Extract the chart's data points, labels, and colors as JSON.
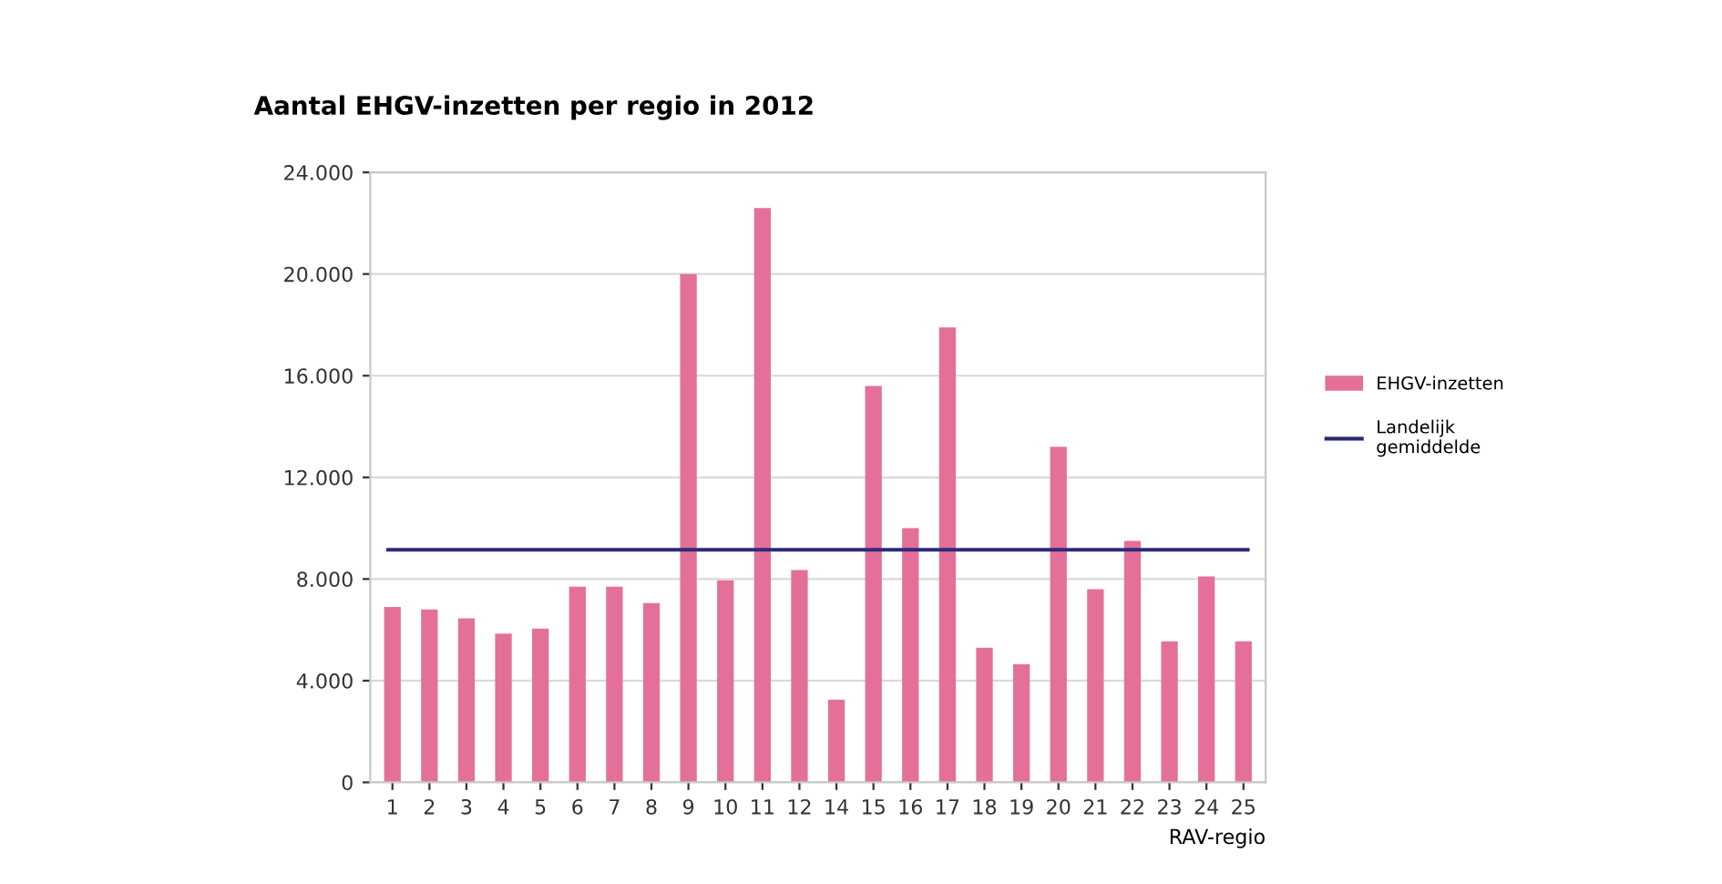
{
  "chart_data": {
    "type": "bar",
    "title": "Aantal EHGV-inzetten per regio in 2012",
    "xlabel": "RAV-regio",
    "categories": [
      "1",
      "2",
      "3",
      "4",
      "5",
      "6",
      "7",
      "8",
      "9",
      "10",
      "11",
      "12",
      "14",
      "15",
      "16",
      "17",
      "18",
      "19",
      "20",
      "21",
      "22",
      "23",
      "24",
      "25"
    ],
    "series": [
      {
        "name": "EHGV-inzetten",
        "color": "#e4709a",
        "values": [
          6900,
          6800,
          6450,
          5850,
          6050,
          7700,
          7700,
          7050,
          20000,
          7950,
          22600,
          8350,
          3250,
          15600,
          10000,
          17900,
          5300,
          4650,
          13200,
          7600,
          9500,
          5550,
          8100,
          5550
        ]
      }
    ],
    "ref_lines": [
      {
        "axis": "y",
        "value": 9150,
        "label": "Landelijk\ngemiddelde",
        "color": "#2e2a7a"
      }
    ],
    "ylim": [
      0,
      24000
    ],
    "yticks": [
      {
        "value": 0,
        "label": "0"
      },
      {
        "value": 4000,
        "label": "4.000"
      },
      {
        "value": 8000,
        "label": "8.000"
      },
      {
        "value": 12000,
        "label": "12.000"
      },
      {
        "value": 16000,
        "label": "16.000"
      },
      {
        "value": 20000,
        "label": "20.000"
      },
      {
        "value": 24000,
        "label": "24.000"
      }
    ],
    "grid": "y",
    "legend": "right"
  }
}
